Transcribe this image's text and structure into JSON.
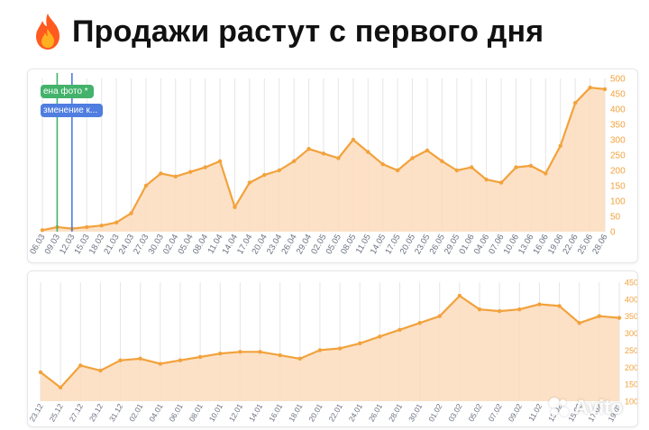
{
  "header": {
    "title": "Продажи растут с первого дня",
    "icon": "fire-icon"
  },
  "annotations": [
    {
      "label": "ена фото *",
      "color": "#43b26b"
    },
    {
      "label": "зменение к...",
      "color": "#4f7de0"
    }
  ],
  "colors": {
    "line": "#f2a23c",
    "fill": "#fcdcbc",
    "axis_text": "#f2a23c",
    "grid": "#e6e6e6",
    "marker_green": "#43b26b",
    "marker_blue": "#4f7de0"
  },
  "watermark": {
    "text": "Avito",
    "icon": "avito-logo-icon"
  },
  "chart_data": [
    {
      "type": "area",
      "x": [
        "06.03",
        "09.03",
        "12.03",
        "15.03",
        "18.03",
        "21.03",
        "24.03",
        "27.03",
        "30.03",
        "02.04",
        "05.04",
        "08.04",
        "11.04",
        "14.04",
        "17.04",
        "20.04",
        "23.04",
        "26.04",
        "29.04",
        "02.05",
        "05.05",
        "08.05",
        "11.05",
        "14.05",
        "17.05",
        "20.05",
        "23.05",
        "26.05",
        "29.05",
        "01.06",
        "04.06",
        "07.06",
        "10.06",
        "13.06",
        "16.06",
        "19.06",
        "22.06",
        "25.06",
        "28.06"
      ],
      "series": [
        {
          "values": [
            5,
            15,
            10,
            15,
            20,
            30,
            60,
            150,
            190,
            180,
            195,
            210,
            230,
            80,
            160,
            185,
            200,
            230,
            270,
            255,
            240,
            300,
            260,
            220,
            200,
            240,
            265,
            230,
            200,
            210,
            170,
            160,
            210,
            215,
            190,
            280,
            420,
            470,
            465
          ]
        }
      ],
      "ylim": [
        0,
        500
      ],
      "yticks": [
        0,
        50,
        100,
        150,
        200,
        250,
        300,
        350,
        400,
        450,
        500
      ],
      "ytick_labels": [
        "0",
        "50",
        "100",
        "150",
        "200",
        "250",
        "300",
        "350",
        "400",
        "450",
        "500"
      ],
      "xtick_labels": [
        "06.03",
        "09.03",
        "12.03",
        "15.03",
        "18.03",
        "21.03",
        "24.03",
        "27.03",
        "30.03",
        "02.04",
        "05.04",
        "08.04",
        "11.04",
        "14.04",
        "17.04",
        "20.04",
        "23.04",
        "26.04",
        "29.04",
        "02.05",
        "05.05",
        "08.05",
        "11.05",
        "14.05",
        "17.05",
        "20.05",
        "23.05",
        "26.05",
        "29.05",
        "01.06",
        "04.06",
        "07.06",
        "10.06",
        "13.06",
        "16.06",
        "19.06",
        "22.06",
        "25.06",
        "28.06"
      ],
      "y_axis": "right",
      "grid": true,
      "markers_at": [
        "09.03",
        "12.03"
      ]
    },
    {
      "type": "area",
      "x": [
        "23.12",
        "25.12",
        "27.12",
        "29.12",
        "31.12",
        "02.01",
        "04.01",
        "06.01",
        "08.01",
        "10.01",
        "12.01",
        "14.01",
        "16.01",
        "18.01",
        "20.01",
        "22.01",
        "24.01",
        "26.01",
        "28.01",
        "30.01",
        "01.02",
        "03.02",
        "05.02",
        "07.02",
        "09.02",
        "11.02",
        "13.02",
        "15.02",
        "17.02",
        "19.02"
      ],
      "series": [
        {
          "values": [
            185,
            140,
            205,
            190,
            220,
            225,
            210,
            220,
            230,
            240,
            245,
            245,
            235,
            225,
            250,
            255,
            270,
            290,
            310,
            330,
            350,
            410,
            370,
            365,
            370,
            385,
            380,
            330,
            350,
            345
          ]
        }
      ],
      "ylim": [
        100,
        450
      ],
      "yticks": [
        100,
        150,
        200,
        250,
        300,
        350,
        400,
        450
      ],
      "ytick_labels": [
        "100",
        "150",
        "200",
        "250",
        "300",
        "350",
        "400",
        "450"
      ],
      "xtick_labels": [
        "23.12",
        "25.12",
        "27.12",
        "29.12",
        "31.12",
        "02.01",
        "04.01",
        "06.01",
        "08.01",
        "10.01",
        "12.01",
        "14.01",
        "16.01",
        "18.01",
        "20.01",
        "22.01",
        "24.01",
        "26.01",
        "28.01",
        "30.01",
        "01.02",
        "03.02",
        "05.02",
        "07.02",
        "09.02",
        "11.02",
        "13.02",
        "15.02",
        "17.02",
        "19.02"
      ],
      "y_axis": "right",
      "grid": true
    }
  ]
}
